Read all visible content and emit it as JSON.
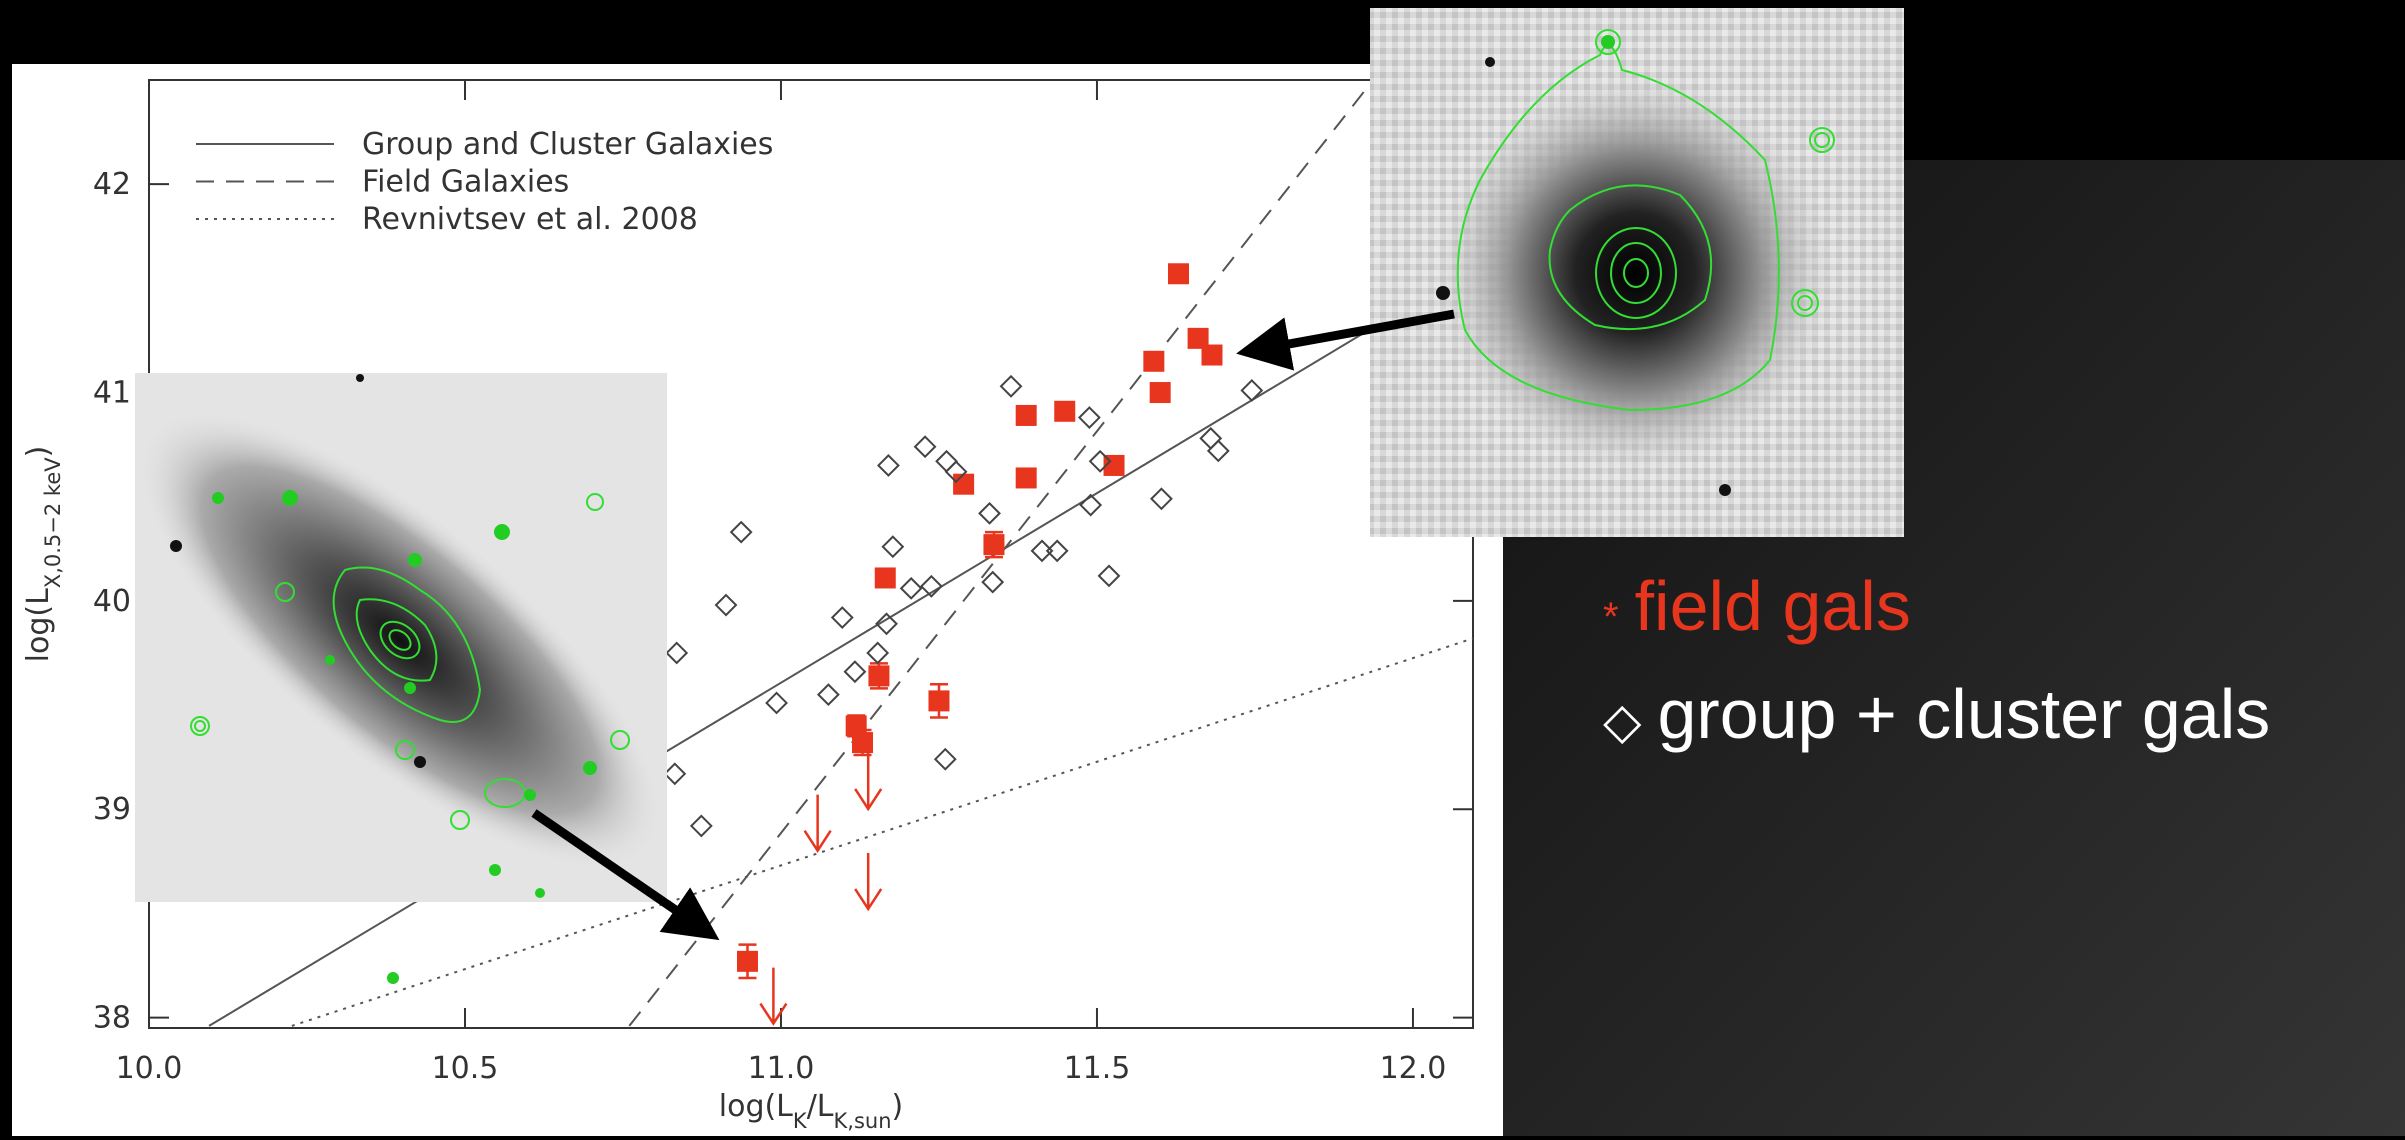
{
  "chart_data": {
    "type": "scatter",
    "xlim": [
      10.0,
      12.095
    ],
    "ylim": [
      37.95,
      42.5
    ],
    "xticks": [
      {
        "value": 10,
        "label": "10.0"
      },
      {
        "value": 10.5,
        "label": "10.5"
      },
      {
        "value": 11,
        "label": "11.0"
      },
      {
        "value": 11.5,
        "label": "11.5"
      },
      {
        "value": 12,
        "label": "12.0"
      }
    ],
    "yticks": [
      38,
      39,
      40,
      41,
      42
    ],
    "xlabel": [
      "log(L",
      "K",
      "/L",
      "K,sun",
      ")"
    ],
    "ylabel": [
      "log(L",
      "X,0.5−2 keV",
      ")"
    ],
    "lines": [
      {
        "name": "Group and Cluster Galaxies",
        "style": "solid",
        "x": [
          10.095,
          12.095
        ],
        "y": [
          37.96,
          41.6
        ]
      },
      {
        "name": "Field Galaxies",
        "style": "dashed",
        "x": [
          10.76,
          11.937
        ],
        "y": [
          37.96,
          42.5
        ]
      },
      {
        "name": "Revnivtsev et al. 2008",
        "style": "dotted",
        "x": [
          10.226,
          12.095
        ],
        "y": [
          37.96,
          39.82
        ]
      }
    ],
    "series": [
      {
        "name": "field gals",
        "symbol": "*",
        "marker": "square",
        "color": "#e8361e",
        "x": [
          10.947,
          11.119,
          11.129,
          11.155,
          11.25,
          11.165,
          11.289,
          11.337,
          11.388,
          11.388,
          11.449,
          11.527,
          11.59,
          11.6,
          11.629,
          11.66,
          11.682
        ],
        "y": [
          38.27,
          39.4,
          39.32,
          39.64,
          39.52,
          40.11,
          40.56,
          40.27,
          40.59,
          40.89,
          40.91,
          40.65,
          41.15,
          41.0,
          41.57,
          41.26,
          41.18
        ],
        "errors": [
          0.08,
          0.05,
          0.06,
          0.06,
          0.08,
          null,
          null,
          0.06,
          null,
          null,
          null,
          null,
          null,
          null,
          null,
          null,
          null
        ]
      },
      {
        "name": "group + cluster gals",
        "symbol": "◇",
        "marker": "diamond",
        "color": "#444444",
        "x": [
          10.835,
          10.832,
          10.874,
          10.913,
          10.937,
          10.993,
          11.097,
          11.075,
          11.117,
          11.17,
          11.177,
          11.167,
          11.153,
          11.206,
          11.238,
          11.228,
          11.262,
          11.277,
          11.26,
          11.33,
          11.335,
          11.364,
          11.413,
          11.437,
          11.488,
          11.49,
          11.519,
          11.505,
          11.602,
          11.68,
          11.692,
          11.745
        ],
        "y": [
          39.75,
          39.17,
          38.92,
          39.98,
          40.33,
          39.51,
          39.92,
          39.55,
          39.66,
          40.65,
          40.26,
          39.89,
          39.75,
          40.06,
          40.07,
          40.74,
          40.67,
          40.62,
          39.24,
          40.42,
          40.09,
          41.03,
          40.24,
          40.24,
          40.88,
          40.46,
          40.12,
          40.67,
          40.49,
          40.78,
          40.72,
          41.01
        ]
      }
    ],
    "upper_limits": {
      "color": "#e8361e",
      "x": [
        11.058,
        11.138,
        11.138,
        10.988
      ],
      "y": [
        39.07,
        39.27,
        38.79,
        38.24
      ]
    }
  }
}
